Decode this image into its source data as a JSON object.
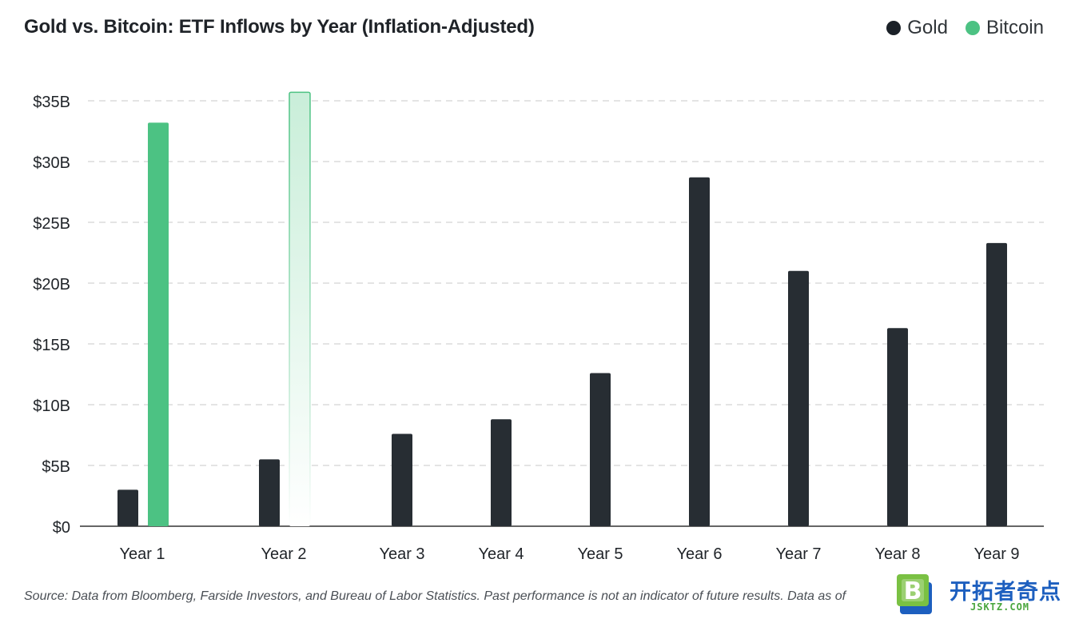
{
  "title": "Gold vs. Bitcoin: ETF Inflows by Year (Inflation-Adjusted)",
  "legend": [
    {
      "label": "Gold",
      "color": "#1b2128"
    },
    {
      "label": "Bitcoin",
      "color": "#4cc283"
    }
  ],
  "source_note": "Source: Data from Bloomberg, Farside Investors, and Bureau of Labor Statistics. Past performance is not an indicator of future results. Data as of",
  "watermark": {
    "cn": "开拓者奇点",
    "en": "JSKTZ.COM",
    "logo_letter": "B"
  },
  "colors": {
    "gold": "#272d33",
    "bitcoin": "#4cc283",
    "bitcoin_faded": "#c9eed9",
    "grid": "#c8c8c8",
    "axis": "#333333"
  },
  "chart_data": {
    "type": "bar",
    "title": "Gold vs. Bitcoin: ETF Inflows by Year (Inflation-Adjusted)",
    "xlabel": "",
    "ylabel": "",
    "categories": [
      "Year 1",
      "Year 2",
      "Year 3",
      "Year 4",
      "Year 5",
      "Year 6",
      "Year 7",
      "Year 8",
      "Year 9"
    ],
    "series": [
      {
        "name": "Gold",
        "values": [
          3.0,
          5.5,
          7.6,
          8.8,
          12.6,
          28.7,
          21.0,
          16.3,
          23.3
        ]
      },
      {
        "name": "Bitcoin",
        "values": [
          33.2,
          35.7,
          null,
          null,
          null,
          null,
          null,
          null,
          null
        ],
        "style": [
          "solid",
          "faded-projection"
        ]
      }
    ],
    "y_ticks": [
      "$0",
      "$5B",
      "$10B",
      "$15B",
      "$20B",
      "$25B",
      "$30B",
      "$35B"
    ],
    "ylim": [
      0,
      35
    ],
    "grid": true,
    "legend_position": "top-right"
  }
}
